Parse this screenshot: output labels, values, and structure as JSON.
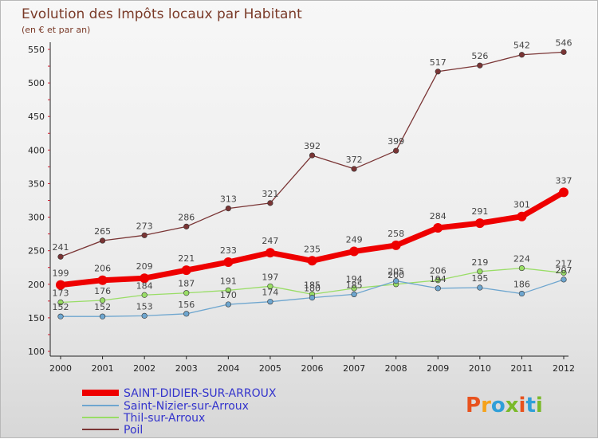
{
  "header": {
    "title": "Evolution des Impôts locaux par Habitant",
    "subtitle": "(en € et par an)"
  },
  "logo": {
    "text": "Proxiti",
    "colors": [
      "#e8521e",
      "#f5a21b",
      "#2f9fd8",
      "#7ab929",
      "#e8521e",
      "#2f9fd8",
      "#7ab929"
    ]
  },
  "chart_data": {
    "type": "line",
    "x": [
      "2000",
      "2001",
      "2002",
      "2003",
      "2004",
      "2005",
      "2006",
      "2007",
      "2008",
      "2009",
      "2010",
      "2011",
      "2012"
    ],
    "ylim": [
      100,
      550
    ],
    "yticks": [
      100,
      150,
      200,
      250,
      300,
      350,
      400,
      450,
      500,
      550
    ],
    "grid": false,
    "legend_position": "bottom-left",
    "series": [
      {
        "name": "SAINT-DIDIER-SUR-ARROUX",
        "color": "#ee0000",
        "values": [
          199,
          206,
          209,
          221,
          233,
          247,
          235,
          249,
          258,
          284,
          291,
          301,
          337
        ]
      },
      {
        "name": "Saint-Nizier-sur-Arroux",
        "color": "#6ea6cf",
        "values": [
          152,
          152,
          153,
          156,
          170,
          174,
          180,
          185,
          205,
          194,
          195,
          186,
          207
        ]
      },
      {
        "name": "Thil-sur-Arroux",
        "color": "#99dd66",
        "values": [
          173,
          176,
          184,
          187,
          191,
          197,
          185,
          194,
          200,
          206,
          219,
          224,
          217
        ]
      },
      {
        "name": "Poil",
        "color": "#7a3535",
        "values": [
          241,
          265,
          273,
          286,
          313,
          321,
          392,
          372,
          399,
          517,
          526,
          542,
          546
        ]
      }
    ]
  }
}
